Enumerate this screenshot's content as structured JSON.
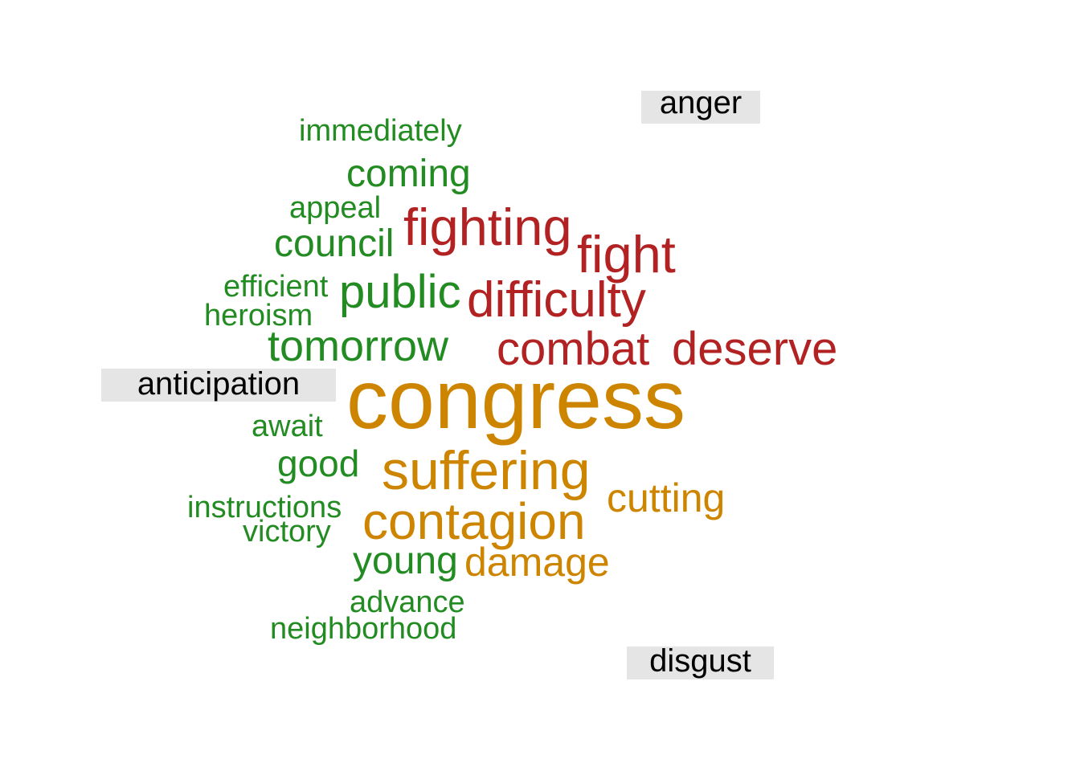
{
  "chart_data": {
    "type": "comparison-wordcloud",
    "categories": [
      {
        "name": "anger",
        "color": "#b22222"
      },
      {
        "name": "anticipation",
        "color": "#228b22"
      },
      {
        "name": "disgust",
        "color": "#cd8500"
      }
    ],
    "words": [
      {
        "text": "immediately",
        "group": "anticipation",
        "weight": 1.0
      },
      {
        "text": "coming",
        "group": "anticipation",
        "weight": 1.3
      },
      {
        "text": "appeal",
        "group": "anticipation",
        "weight": 1.0
      },
      {
        "text": "council",
        "group": "anticipation",
        "weight": 1.3
      },
      {
        "text": "efficient",
        "group": "anticipation",
        "weight": 1.0
      },
      {
        "text": "public",
        "group": "anticipation",
        "weight": 1.6
      },
      {
        "text": "heroism",
        "group": "anticipation",
        "weight": 1.0
      },
      {
        "text": "tomorrow",
        "group": "anticipation",
        "weight": 1.5
      },
      {
        "text": "await",
        "group": "anticipation",
        "weight": 1.0
      },
      {
        "text": "good",
        "group": "anticipation",
        "weight": 1.2
      },
      {
        "text": "instructions",
        "group": "anticipation",
        "weight": 1.0
      },
      {
        "text": "victory",
        "group": "anticipation",
        "weight": 1.0
      },
      {
        "text": "young",
        "group": "anticipation",
        "weight": 1.3
      },
      {
        "text": "advance",
        "group": "anticipation",
        "weight": 1.0
      },
      {
        "text": "neighborhood",
        "group": "anticipation",
        "weight": 1.0
      },
      {
        "text": "fighting",
        "group": "anger",
        "weight": 1.8
      },
      {
        "text": "fight",
        "group": "anger",
        "weight": 1.8
      },
      {
        "text": "difficulty",
        "group": "anger",
        "weight": 1.7
      },
      {
        "text": "combat",
        "group": "anger",
        "weight": 1.6
      },
      {
        "text": "deserve",
        "group": "anger",
        "weight": 1.6
      },
      {
        "text": "congress",
        "group": "disgust",
        "weight": 3.2
      },
      {
        "text": "suffering",
        "group": "disgust",
        "weight": 1.9
      },
      {
        "text": "contagion",
        "group": "disgust",
        "weight": 1.8
      },
      {
        "text": "cutting",
        "group": "disgust",
        "weight": 1.4
      },
      {
        "text": "damage",
        "group": "disgust",
        "weight": 1.4
      }
    ]
  }
}
